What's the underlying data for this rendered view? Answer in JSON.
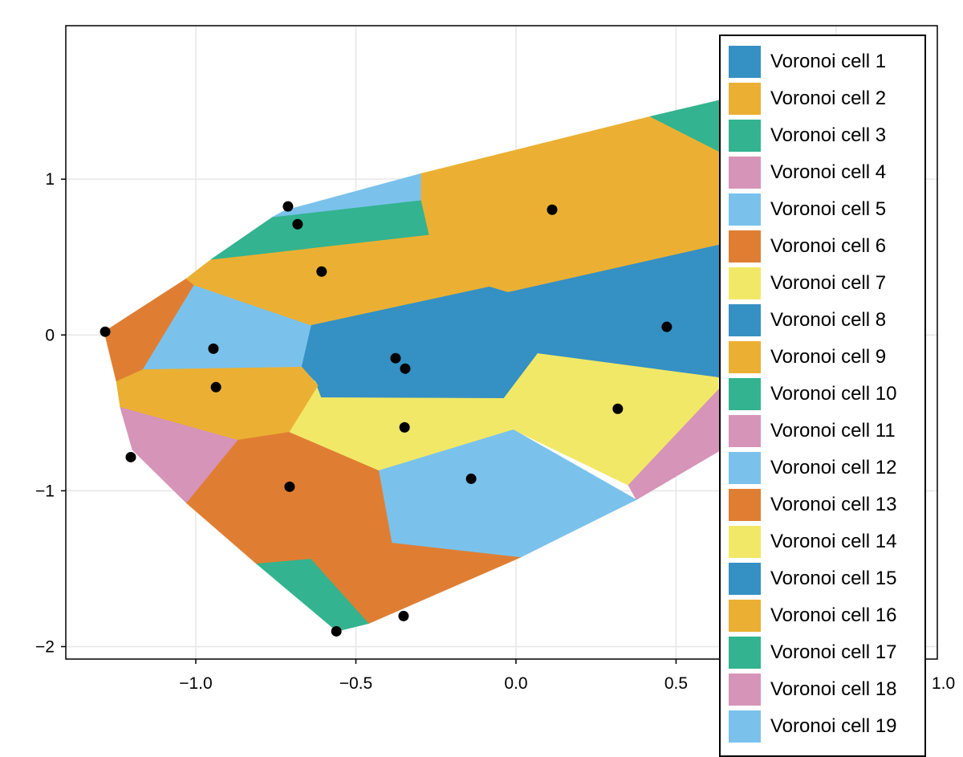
{
  "chart_data": {
    "type": "voronoi",
    "title": "",
    "xlabel": "",
    "ylabel": "",
    "xlim": [
      -1.406,
      1.316
    ],
    "ylim": [
      -2.08,
      1.985
    ],
    "grid": true,
    "xticks": [
      -1.0,
      -0.5,
      0.0,
      0.5,
      1.0
    ],
    "xtick_labels": [
      "−1.0",
      "−0.5",
      "0.0",
      "0.5",
      "1.0"
    ],
    "yticks": [
      1,
      0,
      -1,
      -2
    ],
    "ytick_labels": [
      "1",
      "0",
      "−1",
      "−2"
    ],
    "legend_position": "top-right",
    "palette": [
      "#3590c3",
      "#ebb033",
      "#33b38f",
      "#d694b8",
      "#7ac2ec",
      "#df7e33",
      "#f2e867"
    ],
    "legend": [
      {
        "label": "Voronoi cell 1",
        "color": "#3590c3"
      },
      {
        "label": "Voronoi cell 2",
        "color": "#ebb033"
      },
      {
        "label": "Voronoi cell 3",
        "color": "#33b38f"
      },
      {
        "label": "Voronoi cell 4",
        "color": "#d694b8"
      },
      {
        "label": "Voronoi cell 5",
        "color": "#7ac2ec"
      },
      {
        "label": "Voronoi cell 6",
        "color": "#df7e33"
      },
      {
        "label": "Voronoi cell 7",
        "color": "#f2e867"
      },
      {
        "label": "Voronoi cell 8",
        "color": "#3590c3"
      },
      {
        "label": "Voronoi cell 9",
        "color": "#ebb033"
      },
      {
        "label": "Voronoi cell 10",
        "color": "#33b38f"
      },
      {
        "label": "Voronoi cell 11",
        "color": "#d694b8"
      },
      {
        "label": "Voronoi cell 12",
        "color": "#7ac2ec"
      },
      {
        "label": "Voronoi cell 13",
        "color": "#df7e33"
      },
      {
        "label": "Voronoi cell 14",
        "color": "#f2e867"
      },
      {
        "label": "Voronoi cell 15",
        "color": "#3590c3"
      },
      {
        "label": "Voronoi cell 16",
        "color": "#ebb033"
      },
      {
        "label": "Voronoi cell 17",
        "color": "#33b38f"
      },
      {
        "label": "Voronoi cell 18",
        "color": "#d694b8"
      },
      {
        "label": "Voronoi cell 19",
        "color": "#7ac2ec"
      }
    ],
    "cells": [
      {
        "color": "#df7e33",
        "vertices": [
          [
            -1.286,
            0.021
          ],
          [
            -1.03,
            0.361
          ],
          [
            -1.005,
            0.32
          ],
          [
            -1.165,
            -0.222
          ],
          [
            -1.248,
            -0.299
          ]
        ]
      },
      {
        "color": "#7ac2ec",
        "vertices": [
          [
            -1.005,
            0.32
          ],
          [
            -0.639,
            0.062
          ],
          [
            -0.669,
            -0.206
          ],
          [
            -1.165,
            -0.222
          ]
        ]
      },
      {
        "color": "#ebb033",
        "vertices": [
          [
            -1.03,
            0.361
          ],
          [
            -0.952,
            0.485
          ],
          [
            -0.271,
            0.644
          ],
          [
            -0.083,
            0.309
          ],
          [
            -0.639,
            0.062
          ],
          [
            -1.005,
            0.32
          ]
        ]
      },
      {
        "color": "#33b38f",
        "vertices": [
          [
            -0.952,
            0.485
          ],
          [
            -0.759,
            0.758
          ],
          [
            -0.296,
            0.866
          ],
          [
            -0.271,
            0.644
          ]
        ]
      },
      {
        "color": "#7ac2ec",
        "vertices": [
          [
            -0.759,
            0.758
          ],
          [
            -0.722,
            0.799
          ],
          [
            -0.296,
            1.036
          ],
          [
            -0.296,
            0.866
          ]
        ]
      },
      {
        "color": "#ebb033",
        "vertices": [
          [
            -0.296,
            1.036
          ],
          [
            0.419,
            1.402
          ],
          [
            0.632,
            1.18
          ],
          [
            0.895,
            1.015
          ],
          [
            0.895,
            0.655
          ],
          [
            0.632,
            0.577
          ],
          [
            -0.025,
            0.273
          ],
          [
            -0.083,
            0.309
          ],
          [
            -0.271,
            0.644
          ],
          [
            -0.296,
            0.866
          ]
        ]
      },
      {
        "color": "#33b38f",
        "vertices": [
          [
            0.419,
            1.402
          ],
          [
            0.632,
            1.505
          ],
          [
            0.895,
            1.582
          ],
          [
            0.895,
            1.015
          ],
          [
            0.632,
            1.18
          ]
        ]
      },
      {
        "color": "#3590c3",
        "vertices": [
          [
            -0.639,
            0.062
          ],
          [
            -0.083,
            0.309
          ],
          [
            -0.025,
            0.273
          ],
          [
            0.043,
            -0.021
          ],
          [
            -0.629,
            -0.294
          ],
          [
            -0.669,
            -0.206
          ]
        ]
      },
      {
        "color": "#3590c3",
        "vertices": [
          [
            -0.629,
            -0.294
          ],
          [
            0.043,
            -0.021
          ],
          [
            0.068,
            -0.119
          ],
          [
            -0.038,
            -0.407
          ],
          [
            -0.609,
            -0.402
          ]
        ]
      },
      {
        "color": "#3590c3",
        "vertices": [
          [
            -0.025,
            0.273
          ],
          [
            0.632,
            0.577
          ],
          [
            0.895,
            0.655
          ],
          [
            0.895,
            -0.273
          ],
          [
            0.632,
            -0.273
          ],
          [
            0.068,
            -0.119
          ],
          [
            0.043,
            -0.021
          ]
        ]
      },
      {
        "color": "#f2e867",
        "vertices": [
          [
            0.068,
            -0.119
          ],
          [
            0.632,
            -0.273
          ],
          [
            0.632,
            -0.351
          ],
          [
            0.351,
            -0.964
          ],
          [
            -0.008,
            -0.608
          ],
          [
            -0.038,
            -0.407
          ]
        ]
      },
      {
        "color": "#d694b8",
        "vertices": [
          [
            0.351,
            -0.964
          ],
          [
            0.632,
            -0.351
          ],
          [
            0.769,
            -0.067
          ],
          [
            0.769,
            -0.582
          ],
          [
            0.376,
            -1.057
          ]
        ]
      },
      {
        "color": "#f2e867",
        "vertices": [
          [
            -0.629,
            -0.294
          ],
          [
            -0.609,
            -0.402
          ],
          [
            -0.038,
            -0.407
          ],
          [
            -0.008,
            -0.608
          ],
          [
            -0.429,
            -0.871
          ],
          [
            -0.709,
            -0.624
          ],
          [
            -0.619,
            -0.325
          ]
        ]
      },
      {
        "color": "#ebb033",
        "vertices": [
          [
            -1.165,
            -0.222
          ],
          [
            -0.669,
            -0.206
          ],
          [
            -0.619,
            -0.325
          ],
          [
            -0.709,
            -0.624
          ],
          [
            -0.87,
            -0.675
          ],
          [
            -1.236,
            -0.464
          ],
          [
            -1.248,
            -0.299
          ]
        ]
      },
      {
        "color": "#7ac2ec",
        "vertices": [
          [
            -0.429,
            -0.871
          ],
          [
            -0.008,
            -0.608
          ],
          [
            0.376,
            -1.057
          ],
          [
            0.013,
            -1.428
          ],
          [
            -0.388,
            -1.335
          ]
        ]
      },
      {
        "color": "#df7e33",
        "vertices": [
          [
            -0.87,
            -0.675
          ],
          [
            -0.709,
            -0.624
          ],
          [
            -0.429,
            -0.871
          ],
          [
            -0.388,
            -1.335
          ],
          [
            -0.639,
            -1.438
          ],
          [
            -0.81,
            -1.469
          ],
          [
            -1.03,
            -1.077
          ]
        ]
      },
      {
        "color": "#d694b8",
        "vertices": [
          [
            -1.236,
            -0.464
          ],
          [
            -0.87,
            -0.675
          ],
          [
            -1.03,
            -1.077
          ],
          [
            -1.198,
            -0.737
          ]
        ]
      },
      {
        "color": "#33b38f",
        "vertices": [
          [
            -0.81,
            -1.469
          ],
          [
            -0.639,
            -1.438
          ],
          [
            -0.459,
            -1.851
          ],
          [
            -0.559,
            -1.902
          ]
        ]
      },
      {
        "color": "#df7e33",
        "vertices": [
          [
            -0.639,
            -1.438
          ],
          [
            -0.388,
            -1.335
          ],
          [
            0.013,
            -1.428
          ],
          [
            -0.459,
            -1.851
          ]
        ]
      }
    ],
    "points": [
      [
        -1.283,
        0.021
      ],
      [
        -1.203,
        -0.784
      ],
      [
        -0.712,
        0.825
      ],
      [
        -0.682,
        0.711
      ],
      [
        -0.607,
        0.407
      ],
      [
        -0.945,
        -0.088
      ],
      [
        -0.937,
        -0.335
      ],
      [
        -0.376,
        -0.149
      ],
      [
        -0.346,
        -0.216
      ],
      [
        -0.348,
        -0.593
      ],
      [
        -0.707,
        -0.974
      ],
      [
        -0.14,
        -0.923
      ],
      [
        0.113,
        0.804
      ],
      [
        0.471,
        0.052
      ],
      [
        0.318,
        -0.474
      ],
      [
        -0.351,
        -1.804
      ],
      [
        -0.561,
        -1.902
      ]
    ]
  }
}
